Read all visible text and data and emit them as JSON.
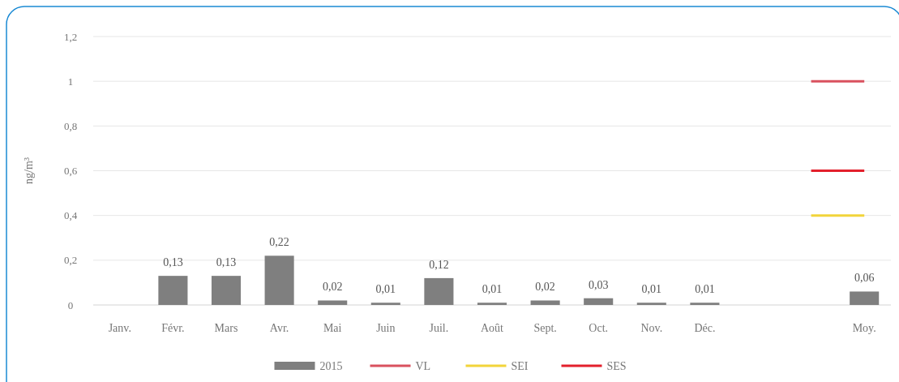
{
  "chart_data": {
    "type": "bar",
    "ylabel": "ng/m³",
    "categories": [
      "Janv.",
      "Févr.",
      "Mars",
      "Avr.",
      "Mai",
      "Juin",
      "Juil.",
      "Août",
      "Sept.",
      "Oct.",
      "Nov.",
      "Déc.",
      null,
      null,
      "Moy."
    ],
    "series": [
      {
        "name": "2015",
        "color": "#7f7f7f",
        "values": [
          null,
          0.13,
          0.13,
          0.22,
          0.02,
          0.01,
          0.12,
          0.01,
          0.02,
          0.03,
          0.01,
          0.01,
          null,
          null,
          0.06
        ],
        "value_labels": [
          null,
          "0,13",
          "0,13",
          "0,22",
          "0,02",
          "0,01",
          "0,12",
          "0,01",
          "0,02",
          "0,03",
          "0,01",
          "0,01",
          null,
          null,
          "0,06"
        ]
      },
      {
        "name": "VL",
        "type": "line",
        "color": "#d9515e",
        "values": [
          null,
          null,
          null,
          null,
          null,
          null,
          null,
          null,
          null,
          null,
          null,
          null,
          null,
          1,
          1
        ]
      },
      {
        "name": "SEI",
        "type": "line",
        "color": "#f2d43a",
        "values": [
          null,
          null,
          null,
          null,
          null,
          null,
          null,
          null,
          null,
          null,
          null,
          null,
          null,
          0.4,
          0.4
        ]
      },
      {
        "name": "SES",
        "type": "line",
        "color": "#e3202c",
        "values": [
          null,
          null,
          null,
          null,
          null,
          null,
          null,
          null,
          null,
          null,
          null,
          null,
          null,
          0.6,
          0.6
        ]
      }
    ],
    "ylim": [
      0,
      1.2
    ],
    "yticks": [
      0,
      {
        "value": 0.2,
        "label": "0,2"
      },
      {
        "value": 0.4,
        "label": "0,4"
      },
      {
        "value": 0.6,
        "label": "0,6"
      },
      {
        "value": 0.8,
        "label": "0,8"
      },
      1,
      {
        "value": 1.2,
        "label": "1,2"
      }
    ],
    "grid": "y",
    "legend": "bottom"
  }
}
